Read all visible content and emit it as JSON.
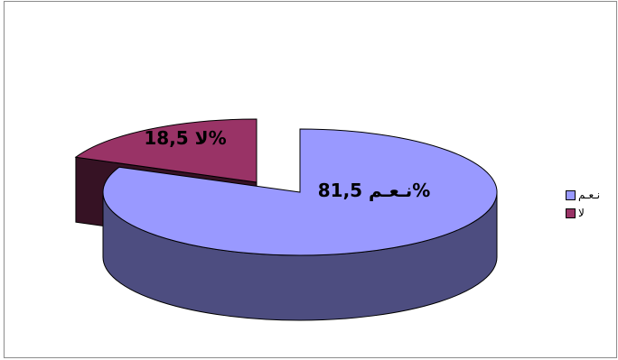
{
  "chart_data": {
    "type": "pie",
    "style": "3d-exploded",
    "slices": [
      {
        "name": "نـعـم",
        "value": 81.5,
        "color": "#9999FF",
        "label": "نـعـم 81,5%"
      },
      {
        "name": "لا",
        "value": 18.5,
        "color": "#993366",
        "label": "لا 18,5%"
      }
    ],
    "legend_position": "right"
  }
}
